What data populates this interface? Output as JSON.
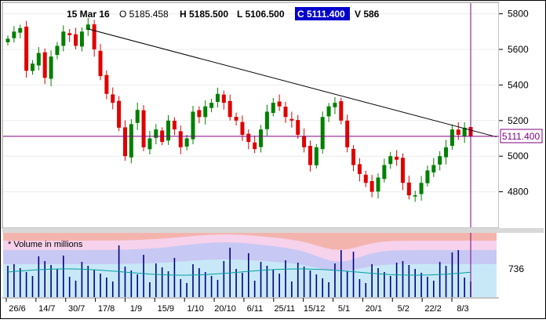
{
  "header": {
    "date": "15 Mar 16",
    "open": "O 5185.458",
    "high": "H 5185.500",
    "low": "L 5106.500",
    "close": "C 5111.400",
    "volume": "V 586"
  },
  "price_tag": "5111.400",
  "volume_panel": {
    "label": "* Volume in millions",
    "tick": "736"
  },
  "colors": {
    "up": "#008000",
    "down": "#e00000",
    "close_line": "#800080",
    "close_box_bg": "#0000cc",
    "volume_bar": "#000080"
  },
  "chart_data": {
    "type": "candlestick",
    "y_ticks": [
      4800,
      5000,
      5200,
      5400,
      5600,
      5800
    ],
    "y_range": [
      4600,
      5860
    ],
    "x_ticks": [
      "26/6",
      "14/7",
      "30/7",
      "17/8",
      "1/9",
      "15/9",
      "1/10",
      "20/10",
      "6/11",
      "25/11",
      "15/12",
      "5/1",
      "20/1",
      "5/2",
      "22/2",
      "8/3"
    ],
    "current_close": 5111.4,
    "trendline": {
      "start": 5715,
      "end": 5108
    },
    "closes": [
      5660,
      5700,
      5720,
      5480,
      5520,
      5580,
      5440,
      5560,
      5620,
      5700,
      5680,
      5620,
      5700,
      5740,
      5600,
      5450,
      5350,
      5300,
      5160,
      5000,
      5180,
      5260,
      5050,
      5100,
      5150,
      5080,
      5200,
      5150,
      5050,
      5100,
      5250,
      5220,
      5280,
      5300,
      5350,
      5300,
      5220,
      5200,
      5120,
      5080,
      5040,
      5150,
      5250,
      5300,
      5280,
      5220,
      5200,
      5120,
      5050,
      4950,
      5050,
      5220,
      5280,
      5300,
      5200,
      5050,
      4950,
      4900,
      4850,
      4800,
      4880,
      4950,
      5000,
      4980,
      4850,
      4780,
      4780,
      4850,
      4920,
      4950,
      5000,
      5050,
      5150,
      5120,
      5160,
      5111
    ],
    "volume_tick": 736
  }
}
